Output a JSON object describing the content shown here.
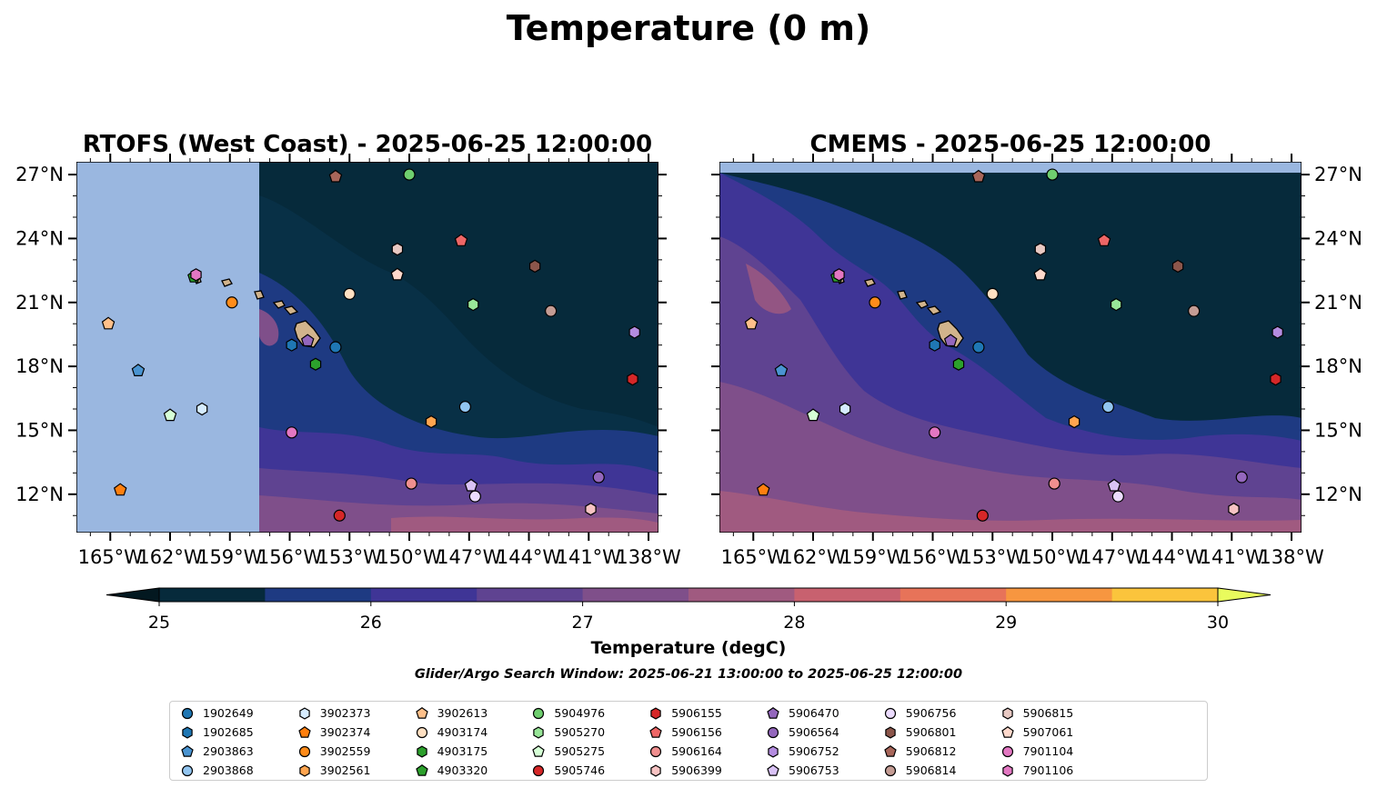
{
  "suptitle": "Temperature (0 m)",
  "panels": [
    {
      "title": "RTOFS (West Coast) - 2025-06-25 12:00:00",
      "yaxis_side": "left"
    },
    {
      "title": "CMEMS - 2025-06-25 12:00:00",
      "yaxis_side": "right"
    }
  ],
  "map_extent": {
    "lon": [
      -166.7,
      -137.5
    ],
    "lat": [
      10.2,
      27.6
    ]
  },
  "lon_ticks": [
    -165,
    -162,
    -159,
    -156,
    -153,
    -150,
    -147,
    -144,
    -141,
    -138
  ],
  "lon_tick_labels": [
    "165°W",
    "162°W",
    "159°W",
    "156°W",
    "153°W",
    "150°W",
    "147°W",
    "144°W",
    "141°W",
    "138°W"
  ],
  "lat_ticks": [
    12,
    15,
    18,
    21,
    24,
    27
  ],
  "lat_tick_labels": [
    "12°N",
    "15°N",
    "18°N",
    "21°N",
    "24°N",
    "27°N"
  ],
  "colorbar": {
    "label": "Temperature (degC)",
    "ticks": [
      25,
      26,
      27,
      28,
      29,
      30
    ],
    "tick_labels": [
      "25",
      "26",
      "27",
      "28",
      "29",
      "30"
    ],
    "levels": [
      25,
      25.5,
      26,
      26.5,
      27,
      27.5,
      28,
      28.5,
      29,
      29.5,
      30
    ],
    "colors": [
      "#062a3b",
      "#1e3a82",
      "#3f3596",
      "#5f4391",
      "#7f4f8a",
      "#a05a80",
      "#c8616f",
      "#e77359",
      "#f79640",
      "#fbc43c"
    ],
    "under_color": "#031820",
    "over_color": "#e9fb5d",
    "extend": "both"
  },
  "land_color": "#d2b48c",
  "nodata_color": "#9ab7e0",
  "search_window": "Glider/Argo Search Window: 2025-06-21 13:00:00 to 2025-06-25 12:00:00",
  "chart_data": {
    "type": "scatter",
    "description_of_fields": "Sea surface temperature maps with Argo float positions; rtofs_data_min_lon marks the western edge of RTOFS model coverage.",
    "rtofs_data_min_lon": -157.5,
    "series": [
      {
        "name": "1902649",
        "marker": "circle",
        "color": "#1f77b4",
        "lon": -153.7,
        "lat": 18.9
      },
      {
        "name": "1902685",
        "marker": "hexagon",
        "color": "#1f77b4",
        "lon": -155.9,
        "lat": 19.0
      },
      {
        "name": "2903863",
        "marker": "pentagon",
        "color": "#4a94d1",
        "lon": -163.6,
        "lat": 17.8
      },
      {
        "name": "2903868",
        "marker": "circle",
        "color": "#92c5f0",
        "lon": -147.2,
        "lat": 16.1
      },
      {
        "name": "3902373",
        "marker": "hexagon",
        "color": "#d6ecff",
        "lon": -160.4,
        "lat": 16.0
      },
      {
        "name": "3902374",
        "marker": "pentagon",
        "color": "#ff7f0e",
        "lon": -164.5,
        "lat": 12.2
      },
      {
        "name": "3902559",
        "marker": "circle",
        "color": "#ff8c1a",
        "lon": -158.9,
        "lat": 21.0
      },
      {
        "name": "3902561",
        "marker": "hexagon",
        "color": "#ffa54f",
        "lon": -148.9,
        "lat": 15.4
      },
      {
        "name": "3902613",
        "marker": "pentagon",
        "color": "#ffc08a",
        "lon": -165.1,
        "lat": 20.0
      },
      {
        "name": "4903174",
        "marker": "circle",
        "color": "#ffe0c2",
        "lon": -153.0,
        "lat": 21.4
      },
      {
        "name": "4903175",
        "marker": "hexagon",
        "color": "#2ca02c",
        "lon": -154.7,
        "lat": 18.1
      },
      {
        "name": "4903320",
        "marker": "pentagon",
        "color": "#2ca02c",
        "lon": -160.8,
        "lat": 22.2
      },
      {
        "name": "5904976",
        "marker": "circle",
        "color": "#6fcf6f",
        "lon": -150.0,
        "lat": 27.0
      },
      {
        "name": "5905270",
        "marker": "hexagon",
        "color": "#98e698",
        "lon": -146.8,
        "lat": 20.9
      },
      {
        "name": "5905275",
        "marker": "pentagon",
        "color": "#d6ffd6",
        "lon": -162.0,
        "lat": 15.7
      },
      {
        "name": "5905746",
        "marker": "circle",
        "color": "#d62728",
        "lon": -153.5,
        "lat": 11.0
      },
      {
        "name": "5906155",
        "marker": "hexagon",
        "color": "#d62728",
        "lon": -138.8,
        "lat": 17.4
      },
      {
        "name": "5906156",
        "marker": "pentagon",
        "color": "#ee6666",
        "lon": -147.4,
        "lat": 23.9
      },
      {
        "name": "5906164",
        "marker": "circle",
        "color": "#f08f8f",
        "lon": -149.9,
        "lat": 12.5
      },
      {
        "name": "5906399",
        "marker": "hexagon",
        "color": "#f7c3c3",
        "lon": -140.9,
        "lat": 11.3
      },
      {
        "name": "5906470",
        "marker": "pentagon",
        "color": "#9467bd",
        "lon": -155.1,
        "lat": 19.2
      },
      {
        "name": "5906564",
        "marker": "circle",
        "color": "#9467bd",
        "lon": -140.5,
        "lat": 12.8
      },
      {
        "name": "5906752",
        "marker": "hexagon",
        "color": "#b48ce0",
        "lon": -138.7,
        "lat": 19.6
      },
      {
        "name": "5906753",
        "marker": "pentagon",
        "color": "#d9c2f5",
        "lon": -146.9,
        "lat": 12.4
      },
      {
        "name": "5906756",
        "marker": "circle",
        "color": "#ecdcff",
        "lon": -146.7,
        "lat": 11.9
      },
      {
        "name": "5906801",
        "marker": "hexagon",
        "color": "#8c564b",
        "lon": -143.7,
        "lat": 22.7
      },
      {
        "name": "5906812",
        "marker": "pentagon",
        "color": "#a8665a",
        "lon": -153.7,
        "lat": 26.9
      },
      {
        "name": "5906814",
        "marker": "circle",
        "color": "#c49c94",
        "lon": -142.9,
        "lat": 20.6
      },
      {
        "name": "5906815",
        "marker": "hexagon",
        "color": "#e8c9c3",
        "lon": -150.6,
        "lat": 23.5
      },
      {
        "name": "5907061",
        "marker": "pentagon",
        "color": "#ffd9cc",
        "lon": -150.6,
        "lat": 22.3
      },
      {
        "name": "7901104",
        "marker": "circle",
        "color": "#e377c2",
        "lon": -155.9,
        "lat": 14.9
      },
      {
        "name": "7901106",
        "marker": "hexagon",
        "color": "#e377c2",
        "lon": -160.7,
        "lat": 22.3
      }
    ]
  }
}
